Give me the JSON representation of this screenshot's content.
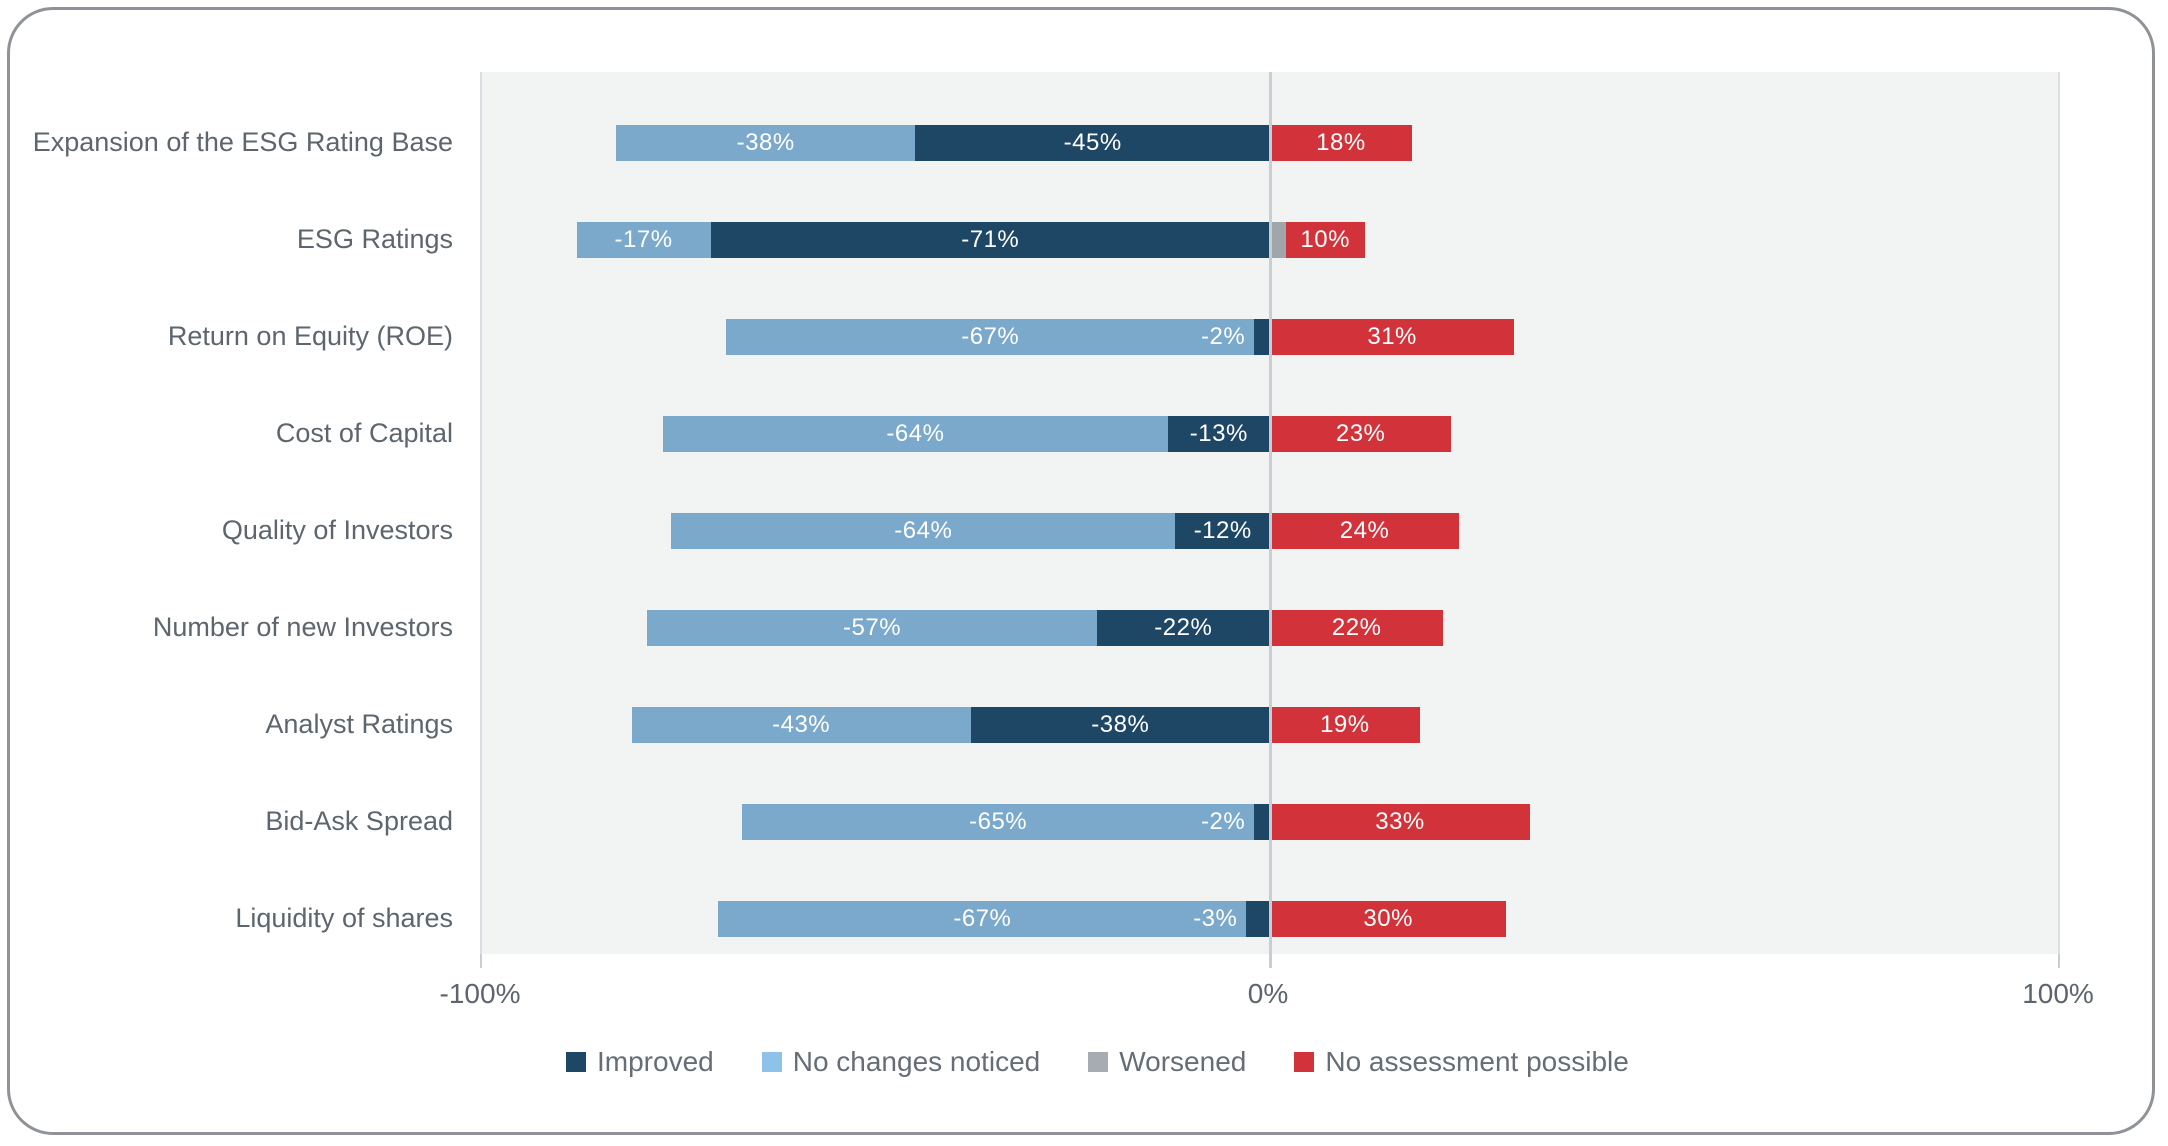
{
  "chart_data": {
    "type": "bar",
    "variant": "diverging-stacked-horizontal",
    "categories": [
      "Expansion of the ESG Rating Base",
      "ESG Ratings",
      "Return on Equity (ROE)",
      "Cost of Capital",
      "Quality of Investors",
      "Number of new Investors",
      "Analyst Ratings",
      "Bid-Ask Spread",
      "Liquidity of shares"
    ],
    "series": [
      {
        "name": "Improved",
        "side": "left",
        "color": "#1e4766",
        "values": [
          -45,
          -71,
          -2,
          -13,
          -12,
          -22,
          -38,
          -2,
          -3
        ],
        "labels": [
          "-45%",
          "-71%",
          "-2%",
          "-13%",
          "-12%",
          "-22%",
          "-38%",
          "-2%",
          "-3%"
        ]
      },
      {
        "name": "No changes noticed",
        "side": "left",
        "color": "#7aa9cb",
        "values": [
          -38,
          -17,
          -67,
          -64,
          -64,
          -57,
          -43,
          -65,
          -67
        ],
        "labels": [
          "-38%",
          "-17%",
          "-67%",
          "-64%",
          "-64%",
          "-57%",
          "-43%",
          "-65%",
          "-67%"
        ]
      },
      {
        "name": "Worsened",
        "side": "right",
        "color": "#a1a5ac",
        "values": [
          0,
          2,
          0,
          0,
          0,
          0,
          0,
          0,
          0
        ],
        "labels": [
          "",
          "",
          "",
          "",
          "",
          "",
          "",
          "",
          ""
        ]
      },
      {
        "name": "No assessment possible",
        "side": "right",
        "color": "#d2333a",
        "values": [
          18,
          10,
          31,
          23,
          24,
          22,
          19,
          33,
          30
        ],
        "labels": [
          "18%",
          "10%",
          "31%",
          "23%",
          "24%",
          "22%",
          "19%",
          "33%",
          "30%"
        ]
      }
    ],
    "xlim": [
      -100,
      100
    ],
    "xticks": {
      "labels": [
        "-100%",
        "0%",
        "100%"
      ],
      "values": [
        -100,
        0,
        100
      ]
    },
    "grid": "zero-line-only",
    "legend": {
      "position": "bottom",
      "items": [
        {
          "label": "Improved",
          "color": "#1e4766"
        },
        {
          "label": "No changes noticed",
          "color": "#8fc2e8"
        },
        {
          "label": "Worsened",
          "color": "#a7abb2"
        },
        {
          "label": "No assessment possible",
          "color": "#d2333a"
        }
      ]
    },
    "colors": {
      "plot_background": "#f2f3f3",
      "zero_line": "#c9ced4",
      "plot_edge": "#dcdee1",
      "card_border": "#8f9296",
      "category_text": "#5d666d",
      "tick_text": "#5c656d",
      "legend_text": "#656e76",
      "bar_value_text": "#ffffff"
    }
  }
}
